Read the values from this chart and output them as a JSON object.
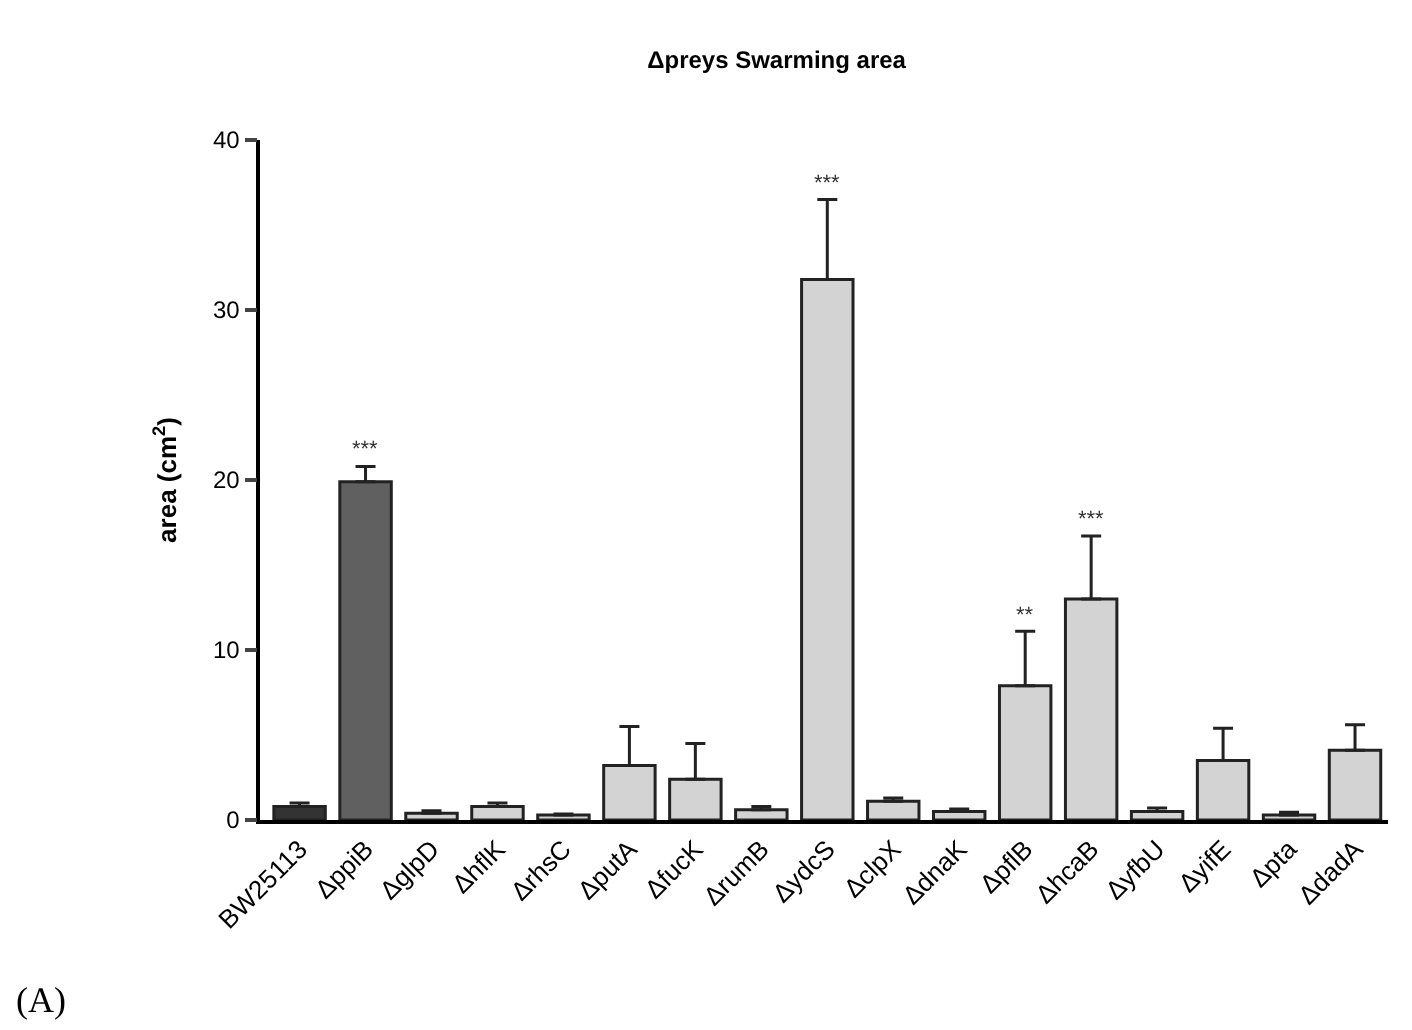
{
  "chart_data": {
    "type": "bar",
    "title": "Δpreys Swarming area",
    "ylabel": "area (cm$^{2}$)",
    "categories": [
      "BW25113",
      "ΔppiB",
      "ΔglpD",
      "ΔhflK",
      "ΔrhsC",
      "ΔputA",
      "ΔfucK",
      "ΔrumB",
      "ΔydcS",
      "ΔclpX",
      "ΔdnaK",
      "ΔpflB",
      "ΔhcaB",
      "ΔyfbU",
      "ΔyifE",
      "Δpta",
      "ΔdadA"
    ],
    "values": [
      0.8,
      19.9,
      0.4,
      0.8,
      0.3,
      3.2,
      2.4,
      0.6,
      31.8,
      1.1,
      0.5,
      7.9,
      13.0,
      0.5,
      3.5,
      0.3,
      4.1
    ],
    "errors": [
      0.2,
      0.9,
      0.15,
      0.2,
      0.05,
      2.3,
      2.1,
      0.2,
      4.7,
      0.2,
      0.15,
      3.2,
      3.7,
      0.2,
      1.9,
      0.15,
      1.5
    ],
    "colors": [
      "#333333",
      "#606060",
      "#d3d3d3",
      "#d3d3d3",
      "#d3d3d3",
      "#d3d3d3",
      "#d3d3d3",
      "#d3d3d3",
      "#d3d3d3",
      "#d3d3d3",
      "#d3d3d3",
      "#d3d3d3",
      "#d3d3d3",
      "#d3d3d3",
      "#d3d3d3",
      "#d3d3d3",
      "#d3d3d3"
    ],
    "ylim": [
      0,
      40
    ],
    "yticks": [
      0,
      10,
      20,
      30,
      40
    ],
    "annotations": [
      {
        "text": "***",
        "x": "ΔppiB",
        "y": 20.8
      },
      {
        "text": "***",
        "x": "ΔydcS",
        "y": 36.5
      },
      {
        "text": "**",
        "x": "ΔpflB",
        "y": 11.1
      },
      {
        "text": "***",
        "x": "ΔhcaB",
        "y": 16.7
      },
      "(A)"
    ]
  }
}
